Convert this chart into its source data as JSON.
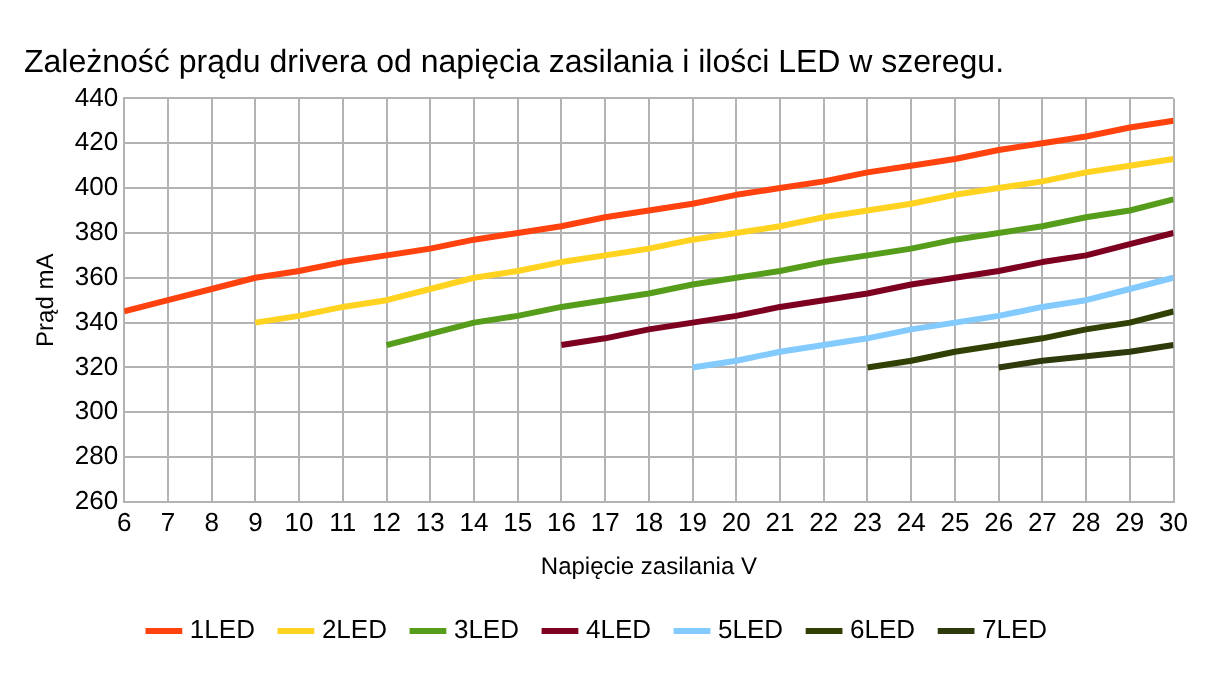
{
  "chart_data": {
    "type": "line",
    "title": "Zależność prądu drivera od napięcia zasilania i ilości LED w szeregu.",
    "xlabel": "Napięcie zasilania V",
    "ylabel": "Prąd mA",
    "xlim": [
      6,
      30
    ],
    "xticks": [
      6,
      7,
      8,
      9,
      10,
      11,
      12,
      13,
      14,
      15,
      16,
      17,
      18,
      19,
      20,
      21,
      22,
      23,
      24,
      25,
      26,
      27,
      28,
      29,
      30
    ],
    "ylim": [
      260,
      440
    ],
    "yticks": [
      260,
      280,
      300,
      320,
      340,
      360,
      380,
      400,
      420,
      440
    ],
    "grid": true,
    "legend": "bottom",
    "marker": "none",
    "line_style": "solid",
    "series": [
      {
        "name": "1LED",
        "color": "#ff420e",
        "x": [
          6,
          7,
          8,
          9,
          10,
          11,
          12,
          13,
          14,
          15,
          16,
          17,
          18,
          19,
          20,
          21,
          22,
          23,
          24,
          25,
          26,
          27,
          28,
          29,
          30
        ],
        "values": [
          345,
          350,
          355,
          360,
          363,
          367,
          370,
          373,
          377,
          380,
          383,
          387,
          390,
          393,
          397,
          400,
          403,
          407,
          410,
          413,
          417,
          420,
          423,
          427,
          430
        ]
      },
      {
        "name": "2LED",
        "color": "#ffd320",
        "x": [
          9,
          10,
          11,
          12,
          13,
          14,
          15,
          16,
          17,
          18,
          19,
          20,
          21,
          22,
          23,
          24,
          25,
          26,
          27,
          28,
          29,
          30
        ],
        "values": [
          340,
          343,
          347,
          350,
          355,
          360,
          363,
          367,
          370,
          373,
          377,
          380,
          383,
          387,
          390,
          393,
          397,
          400,
          403,
          407,
          410,
          413
        ]
      },
      {
        "name": "3LED",
        "color": "#579d1c",
        "x": [
          12,
          13,
          14,
          15,
          16,
          17,
          18,
          19,
          20,
          21,
          22,
          23,
          24,
          25,
          26,
          27,
          28,
          29,
          30
        ],
        "values": [
          330,
          335,
          340,
          343,
          347,
          350,
          353,
          357,
          360,
          363,
          367,
          370,
          373,
          377,
          380,
          383,
          387,
          390,
          395
        ]
      },
      {
        "name": "4LED",
        "color": "#7e0021",
        "x": [
          16,
          17,
          18,
          19,
          20,
          21,
          22,
          23,
          24,
          25,
          26,
          27,
          28,
          29,
          30
        ],
        "values": [
          330,
          333,
          337,
          340,
          343,
          347,
          350,
          353,
          357,
          360,
          363,
          367,
          370,
          375,
          380
        ]
      },
      {
        "name": "5LED",
        "color": "#83caff",
        "x": [
          19,
          20,
          21,
          22,
          23,
          24,
          25,
          26,
          27,
          28,
          29,
          30
        ],
        "values": [
          320,
          323,
          327,
          330,
          333,
          337,
          340,
          343,
          347,
          350,
          355,
          360
        ]
      },
      {
        "name": "6LED",
        "color": "#314004",
        "x": [
          23,
          24,
          25,
          26,
          27,
          28,
          29,
          30
        ],
        "values": [
          320,
          323,
          327,
          330,
          333,
          337,
          340,
          345
        ]
      },
      {
        "name": "7LED",
        "color": "#2e3a0c",
        "x": [
          26,
          27,
          28,
          29,
          30
        ],
        "values": [
          320,
          323,
          325,
          327,
          330
        ]
      }
    ]
  }
}
